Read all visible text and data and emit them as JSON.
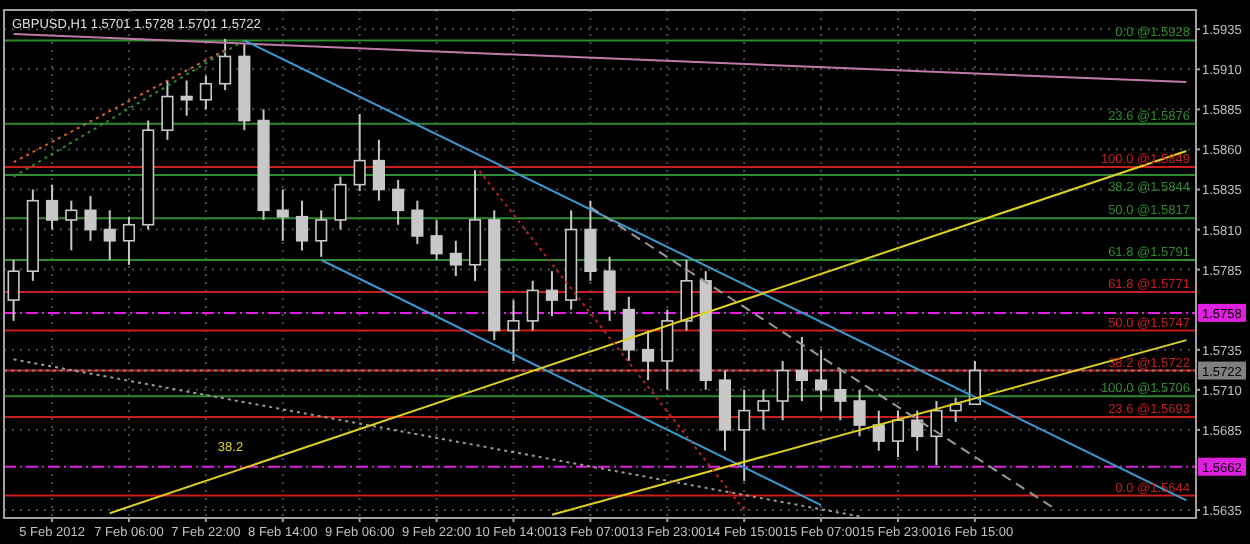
{
  "chart_data": {
    "type": "candlestick",
    "title": "GBPUSD,H1 1.5701 1.5728 1.5701 1.5722",
    "color": "#c8c8c8",
    "categories": [
      null,
      null,
      "5 Feb 2012",
      null,
      null,
      null,
      "7 Feb 06:00",
      null,
      null,
      null,
      "7 Feb 22:00",
      null,
      null,
      null,
      "8 Feb 14:00",
      null,
      null,
      null,
      "9 Feb 06:00",
      null,
      null,
      null,
      "9 Feb 22:00",
      null,
      null,
      null,
      "10 Feb 14:00",
      null,
      null,
      null,
      "13 Feb 07:00",
      null,
      null,
      null,
      "13 Feb 23:00",
      null,
      null,
      null,
      "14 Feb 15:00",
      null,
      null,
      null,
      "15 Feb 07:00",
      null,
      null,
      null,
      "15 Feb 23:00",
      null,
      null,
      null,
      "16 Feb 15:00",
      null,
      null,
      null,
      null,
      null,
      null,
      null,
      null,
      null,
      null,
      null
    ],
    "ohlc": [
      [
        1.5766,
        1.5791,
        1.5753,
        1.5784
      ],
      [
        1.5784,
        1.5835,
        1.5778,
        1.5828
      ],
      [
        1.5828,
        1.5838,
        1.581,
        1.5816
      ],
      [
        1.5816,
        1.5828,
        1.5797,
        1.5822
      ],
      [
        1.5822,
        1.5831,
        1.5803,
        1.581
      ],
      [
        1.581,
        1.5822,
        1.5791,
        1.5803
      ],
      [
        1.5803,
        1.5818,
        1.5788,
        1.5813
      ],
      [
        1.5813,
        1.5878,
        1.581,
        1.5872
      ],
      [
        1.5872,
        1.5903,
        1.5866,
        1.5893
      ],
      [
        1.5893,
        1.5903,
        1.5881,
        1.5891
      ],
      [
        1.5891,
        1.5906,
        1.5885,
        1.5901
      ],
      [
        1.5901,
        1.5929,
        1.5897,
        1.5918
      ],
      [
        1.5918,
        1.5926,
        1.5872,
        1.5878
      ],
      [
        1.5878,
        1.5885,
        1.5816,
        1.5822
      ],
      [
        1.5822,
        1.5835,
        1.5803,
        1.5818
      ],
      [
        1.5818,
        1.5828,
        1.5797,
        1.5803
      ],
      [
        1.5803,
        1.5822,
        1.5793,
        1.5816
      ],
      [
        1.5816,
        1.5843,
        1.581,
        1.5838
      ],
      [
        1.5838,
        1.5882,
        1.5834,
        1.5853
      ],
      [
        1.5853,
        1.5866,
        1.5828,
        1.5835
      ],
      [
        1.5835,
        1.5841,
        1.5813,
        1.5822
      ],
      [
        1.5822,
        1.5828,
        1.5801,
        1.5806
      ],
      [
        1.5806,
        1.5816,
        1.5791,
        1.5795
      ],
      [
        1.5795,
        1.5803,
        1.5781,
        1.5788
      ],
      [
        1.5788,
        1.5847,
        1.5778,
        1.5816
      ],
      [
        1.5816,
        1.5822,
        1.5741,
        1.5747
      ],
      [
        1.5747,
        1.5766,
        1.5728,
        1.5753
      ],
      [
        1.5753,
        1.5778,
        1.5747,
        1.5772
      ],
      [
        1.5772,
        1.5784,
        1.5756,
        1.5766
      ],
      [
        1.5766,
        1.5822,
        1.576,
        1.581
      ],
      [
        1.581,
        1.5828,
        1.5778,
        1.5784
      ],
      [
        1.5784,
        1.5793,
        1.5753,
        1.576
      ],
      [
        1.576,
        1.5768,
        1.5728,
        1.5735
      ],
      [
        1.5735,
        1.5747,
        1.5716,
        1.5728
      ],
      [
        1.5728,
        1.576,
        1.571,
        1.5753
      ],
      [
        1.5753,
        1.5791,
        1.5747,
        1.5778
      ],
      [
        1.5778,
        1.5784,
        1.571,
        1.5716
      ],
      [
        1.5716,
        1.5722,
        1.5672,
        1.5685
      ],
      [
        1.5685,
        1.571,
        1.5653,
        1.5697
      ],
      [
        1.5697,
        1.571,
        1.5685,
        1.5703
      ],
      [
        1.5703,
        1.5728,
        1.5691,
        1.5722
      ],
      [
        1.5722,
        1.5743,
        1.5703,
        1.5716
      ],
      [
        1.5716,
        1.5735,
        1.5697,
        1.571
      ],
      [
        1.571,
        1.5722,
        1.5691,
        1.5703
      ],
      [
        1.5703,
        1.571,
        1.5681,
        1.5688
      ],
      [
        1.5688,
        1.5697,
        1.5672,
        1.5678
      ],
      [
        1.5678,
        1.5697,
        1.5668,
        1.5691
      ],
      [
        1.5691,
        1.5697,
        1.5672,
        1.5681
      ],
      [
        1.5681,
        1.5703,
        1.5663,
        1.5697
      ],
      [
        1.5697,
        1.5705,
        1.569,
        1.5701
      ],
      [
        1.5701,
        1.5728,
        1.5701,
        1.5722
      ],
      null,
      null,
      null,
      null,
      null,
      null,
      null,
      null,
      null,
      null,
      null
    ],
    "ylim": [
      1.563,
      1.5947
    ],
    "yticks": [
      {
        "value": 1.5935,
        "label": "1.5935"
      },
      {
        "value": 1.591,
        "label": "1.5910"
      },
      {
        "value": 1.5885,
        "label": "1.5885"
      },
      {
        "value": 1.586,
        "label": "1.5860"
      },
      {
        "value": 1.5835,
        "label": "1.5835"
      },
      {
        "value": 1.581,
        "label": "1.5810"
      },
      {
        "value": 1.5785,
        "label": "1.5785"
      },
      {
        "value": 1.5735,
        "label": "1.5735"
      },
      {
        "value": 1.571,
        "label": "1.5710"
      },
      {
        "value": 1.5685,
        "label": "1.5685"
      },
      {
        "value": 1.5635,
        "label": "1.5635"
      }
    ],
    "grid": true,
    "ref_lines": [
      {
        "axis": "y",
        "value": 1.5928,
        "label": "0.0 @1.5928",
        "color": "#2e8b2e",
        "line_style": "solid"
      },
      {
        "axis": "y",
        "value": 1.5876,
        "label": "23.6 @1.5876",
        "color": "#2e8b2e",
        "line_style": "solid"
      },
      {
        "axis": "y",
        "value": 1.5849,
        "label": "100.0 @1.5849",
        "color": "#c81e1e",
        "line_style": "solid"
      },
      {
        "axis": "y",
        "value": 1.5844,
        "label": "38.2 @1.5844",
        "color": "#2e8b2e",
        "line_style": "solid"
      },
      {
        "axis": "y",
        "value": 1.5817,
        "label": "50.0 @1.5817",
        "color": "#2e8b2e",
        "line_style": "solid"
      },
      {
        "axis": "y",
        "value": 1.5791,
        "label": "61.8 @1.5791",
        "color": "#2e8b2e",
        "line_style": "solid"
      },
      {
        "axis": "y",
        "value": 1.5771,
        "label": "61.8 @1.5771",
        "color": "#c81e1e",
        "line_style": "solid"
      },
      {
        "axis": "y",
        "value": 1.5747,
        "label": "50.0 @1.5747",
        "color": "#c81e1e",
        "line_style": "solid"
      },
      {
        "axis": "y",
        "value": 1.5722,
        "label": "38.2 @1.5722",
        "color": "#c81e1e",
        "line_style": "solid"
      },
      {
        "axis": "y",
        "value": 1.5706,
        "label": "100.0 @1.5706",
        "color": "#2e8b2e",
        "line_style": "solid"
      },
      {
        "axis": "y",
        "value": 1.5693,
        "label": "23.6 @1.5693",
        "color": "#c81e1e",
        "line_style": "solid"
      },
      {
        "axis": "y",
        "value": 1.5644,
        "label": "0.0 @1.5644",
        "color": "#c81e1e",
        "line_style": "solid"
      },
      {
        "axis": "y",
        "value": 1.5758,
        "label": "1.5758",
        "color": "#e020e0",
        "line_style": "dashed"
      },
      {
        "axis": "y",
        "value": 1.5662,
        "label": "1.5662",
        "color": "#e020e0",
        "line_style": "dashed"
      },
      {
        "axis": "y",
        "value": 1.5722,
        "label": "1.5722",
        "color": "#808080",
        "line_style": "dotted"
      }
    ],
    "series": [
      {
        "type": "line",
        "color": "#c07aa8",
        "line_style": "solid",
        "values": [
          1.5932,
          null,
          null,
          null,
          null,
          null,
          null,
          null,
          null,
          null,
          null,
          null,
          null,
          null,
          null,
          null,
          null,
          null,
          null,
          null,
          null,
          null,
          null,
          null,
          null,
          null,
          null,
          null,
          null,
          null,
          null,
          null,
          null,
          null,
          null,
          null,
          null,
          null,
          null,
          null,
          null,
          null,
          null,
          null,
          null,
          null,
          null,
          null,
          null,
          null,
          null,
          null,
          null,
          null,
          null,
          null,
          null,
          null,
          null,
          null,
          null,
          1.5902
        ]
      },
      {
        "type": "line",
        "color": "#3a9ad0",
        "line_style": "solid",
        "values": [
          null,
          null,
          null,
          null,
          null,
          null,
          null,
          null,
          null,
          null,
          null,
          null,
          1.5928,
          null,
          null,
          null,
          null,
          null,
          null,
          null,
          null,
          null,
          null,
          null,
          null,
          null,
          null,
          null,
          null,
          null,
          null,
          null,
          null,
          null,
          null,
          null,
          null,
          null,
          null,
          null,
          null,
          null,
          null,
          null,
          null,
          null,
          null,
          null,
          null,
          null,
          null,
          null,
          null,
          null,
          null,
          null,
          null,
          null,
          null,
          null,
          null,
          1.5641
        ]
      },
      {
        "type": "line",
        "color": "#3a9ad0",
        "line_style": "solid",
        "values": [
          null,
          null,
          null,
          null,
          null,
          null,
          null,
          null,
          null,
          null,
          null,
          null,
          null,
          null,
          null,
          null,
          1.5791,
          null,
          null,
          null,
          null,
          null,
          null,
          null,
          null,
          null,
          null,
          null,
          null,
          null,
          null,
          null,
          null,
          null,
          null,
          null,
          null,
          null,
          null,
          null,
          null,
          null,
          1.5638,
          null,
          null,
          null,
          null,
          null,
          null,
          null,
          null,
          null,
          null,
          null,
          null,
          null,
          null,
          null,
          null,
          null,
          null,
          null
        ]
      },
      {
        "type": "line",
        "color": "#e0d020",
        "line_style": "solid",
        "values": [
          null,
          null,
          null,
          null,
          null,
          1.5633,
          null,
          null,
          null,
          null,
          null,
          null,
          null,
          null,
          null,
          null,
          null,
          null,
          null,
          null,
          null,
          null,
          null,
          null,
          null,
          null,
          null,
          null,
          null,
          null,
          null,
          null,
          null,
          null,
          null,
          null,
          null,
          null,
          null,
          null,
          null,
          null,
          null,
          null,
          null,
          null,
          null,
          null,
          null,
          null,
          null,
          null,
          null,
          null,
          null,
          null,
          null,
          null,
          null,
          null,
          null,
          1.5859
        ]
      },
      {
        "type": "line",
        "color": "#e0d020",
        "line_style": "solid",
        "values": [
          null,
          null,
          null,
          null,
          null,
          null,
          null,
          null,
          null,
          null,
          null,
          null,
          null,
          null,
          null,
          null,
          null,
          null,
          null,
          null,
          null,
          null,
          null,
          null,
          null,
          null,
          null,
          null,
          1.5632,
          null,
          null,
          null,
          null,
          null,
          null,
          null,
          null,
          null,
          null,
          null,
          null,
          null,
          null,
          null,
          null,
          null,
          null,
          null,
          null,
          null,
          null,
          null,
          null,
          null,
          null,
          null,
          null,
          null,
          null,
          null,
          null,
          1.5741
        ]
      },
      {
        "type": "line",
        "color": "#9a9a9a",
        "line_style": "dotted",
        "values": [
          1.5729,
          null,
          null,
          null,
          null,
          null,
          null,
          null,
          null,
          null,
          null,
          null,
          null,
          null,
          null,
          null,
          null,
          null,
          null,
          null,
          null,
          null,
          null,
          null,
          null,
          null,
          null,
          null,
          null,
          null,
          null,
          null,
          null,
          null,
          null,
          null,
          null,
          null,
          null,
          null,
          null,
          null,
          null,
          null,
          1.5631,
          null,
          null,
          null,
          null,
          null,
          null,
          null,
          null,
          null,
          null,
          null,
          null,
          null,
          null,
          null,
          null,
          null
        ]
      },
      {
        "type": "line",
        "color": "#9a9a9a",
        "line_style": "dashed",
        "values": [
          null,
          null,
          null,
          null,
          null,
          null,
          null,
          null,
          null,
          null,
          null,
          null,
          null,
          null,
          null,
          null,
          null,
          null,
          null,
          null,
          null,
          null,
          null,
          null,
          null,
          null,
          null,
          null,
          null,
          null,
          1.5824,
          null,
          null,
          null,
          null,
          null,
          null,
          null,
          null,
          null,
          null,
          null,
          null,
          null,
          null,
          null,
          null,
          null,
          null,
          null,
          null,
          null,
          null,
          null,
          1.5637,
          null,
          null,
          null,
          null,
          null,
          null,
          null
        ]
      },
      {
        "type": "line",
        "color": "#c02020",
        "line_style": "dotted",
        "values": [
          null,
          null,
          null,
          null,
          null,
          null,
          null,
          null,
          null,
          null,
          null,
          null,
          null,
          null,
          null,
          null,
          null,
          null,
          null,
          null,
          null,
          null,
          null,
          null,
          1.585,
          null,
          null,
          null,
          null,
          null,
          null,
          null,
          null,
          null,
          null,
          null,
          null,
          null,
          1.5635,
          null,
          null,
          null,
          null,
          null,
          null,
          null,
          null,
          null,
          null,
          null,
          null,
          null,
          null,
          null,
          null,
          null,
          null,
          null,
          null,
          null,
          null,
          null
        ]
      },
      {
        "type": "line",
        "color": "#d06030",
        "line_style": "dotted",
        "values": [
          1.5852,
          null,
          null,
          null,
          null,
          null,
          null,
          null,
          null,
          null,
          null,
          1.5922,
          null,
          null,
          null,
          null,
          null,
          null,
          null,
          null,
          null,
          null,
          null,
          null,
          null,
          null,
          null,
          null,
          null,
          null,
          null,
          null,
          null,
          null,
          null,
          null,
          null,
          null,
          null,
          null,
          null,
          null,
          null,
          null,
          null,
          null,
          null,
          null,
          null,
          null,
          null,
          null,
          null,
          null,
          null,
          null,
          null,
          null,
          null,
          null,
          null,
          null
        ]
      },
      {
        "type": "line",
        "color": "#2e8b2e",
        "line_style": "dotted",
        "values": [
          1.5843,
          null,
          null,
          null,
          null,
          null,
          null,
          null,
          null,
          null,
          null,
          null,
          1.5928,
          null,
          null,
          null,
          null,
          null,
          null,
          null,
          null,
          null,
          null,
          null,
          null,
          null,
          null,
          null,
          null,
          null,
          null,
          null,
          null,
          null,
          null,
          null,
          null,
          null,
          null,
          null,
          null,
          null,
          null,
          null,
          null,
          null,
          null,
          null,
          null,
          null,
          null,
          null,
          null,
          null,
          null,
          null,
          null,
          null,
          null,
          null,
          null,
          null
        ]
      }
    ],
    "annotations": [
      {
        "text": "38.2",
        "y": 1.5668
      }
    ]
  }
}
